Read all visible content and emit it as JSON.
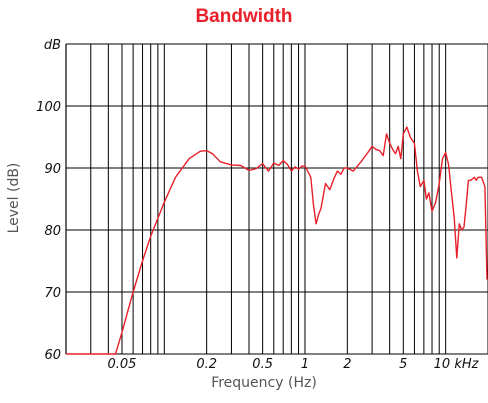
{
  "chart_data": {
    "type": "line",
    "title": "Bandwidth",
    "xlabel": "Frequency (Hz)",
    "ylabel": "Level (dB)",
    "x_scale": "log",
    "xlim": [
      0.02,
      20
    ],
    "ylim": [
      60,
      110
    ],
    "x_ticks": [
      {
        "v": 0.05,
        "label": "0.05"
      },
      {
        "v": 0.2,
        "label": "0.2"
      },
      {
        "v": 0.5,
        "label": "0.5"
      },
      {
        "v": 1,
        "label": "1"
      },
      {
        "v": 2,
        "label": "2"
      },
      {
        "v": 5,
        "label": "5"
      },
      {
        "v": 10,
        "label": "10 kHz"
      }
    ],
    "y_ticks": [
      {
        "v": 60,
        "label": "60"
      },
      {
        "v": 70,
        "label": "70"
      },
      {
        "v": 80,
        "label": "80"
      },
      {
        "v": 90,
        "label": "90"
      },
      {
        "v": 100,
        "label": "100"
      },
      {
        "v": 110,
        "label": "dB"
      }
    ],
    "grid": true,
    "line_color": "#e8202a",
    "series": [
      {
        "x": [
          0.02,
          0.03,
          0.04,
          0.045,
          0.05,
          0.06,
          0.07,
          0.08,
          0.1,
          0.12,
          0.15,
          0.18,
          0.2,
          0.22,
          0.25,
          0.3,
          0.35,
          0.4,
          0.45,
          0.5,
          0.55,
          0.6,
          0.65,
          0.7,
          0.75,
          0.8,
          0.85,
          0.9,
          0.95,
          1.0,
          1.05,
          1.1,
          1.15,
          1.2,
          1.25,
          1.3,
          1.4,
          1.5,
          1.6,
          1.7,
          1.8,
          1.9,
          2.0,
          2.2,
          2.5,
          2.8,
          3.0,
          3.2,
          3.4,
          3.6,
          3.8,
          4.0,
          4.2,
          4.4,
          4.6,
          4.8,
          5.0,
          5.3,
          5.6,
          6.0,
          6.3,
          6.6,
          7.0,
          7.3,
          7.6,
          8.0,
          8.5,
          9.0,
          9.5,
          10.0,
          10.5,
          11.0,
          11.5,
          12.0,
          12.5,
          13.0,
          13.5,
          14.0,
          14.5,
          15.0,
          16.0,
          16.5,
          17.0,
          18.0,
          19.0,
          20.0
        ],
        "y": [
          60,
          60,
          60,
          60,
          63.5,
          70,
          75,
          79,
          84.5,
          88.5,
          91.5,
          92.7,
          92.8,
          92.3,
          91,
          90.5,
          90.4,
          89.6,
          89.9,
          90.7,
          89.5,
          90.8,
          90.4,
          91.2,
          90.6,
          89.5,
          90.2,
          89.8,
          90.3,
          90.3,
          89.4,
          88.5,
          84.0,
          81.0,
          82.5,
          83.5,
          87.5,
          86.5,
          88.2,
          89.5,
          89.0,
          90.0,
          90.0,
          89.5,
          91.0,
          92.5,
          93.5,
          93.0,
          92.8,
          92.0,
          95.5,
          94.0,
          93.0,
          92.3,
          93.5,
          91.5,
          95.5,
          96.6,
          95.0,
          94.0,
          89.5,
          87.0,
          88.0,
          85.0,
          86.0,
          83.0,
          84.5,
          87.5,
          91.5,
          92.5,
          90.5,
          86.0,
          82.0,
          75.5,
          81.0,
          80.0,
          80.5,
          84.0,
          88.0,
          88.0,
          88.5,
          88.0,
          88.5,
          88.5,
          87.0,
          72.0
        ]
      }
    ]
  }
}
